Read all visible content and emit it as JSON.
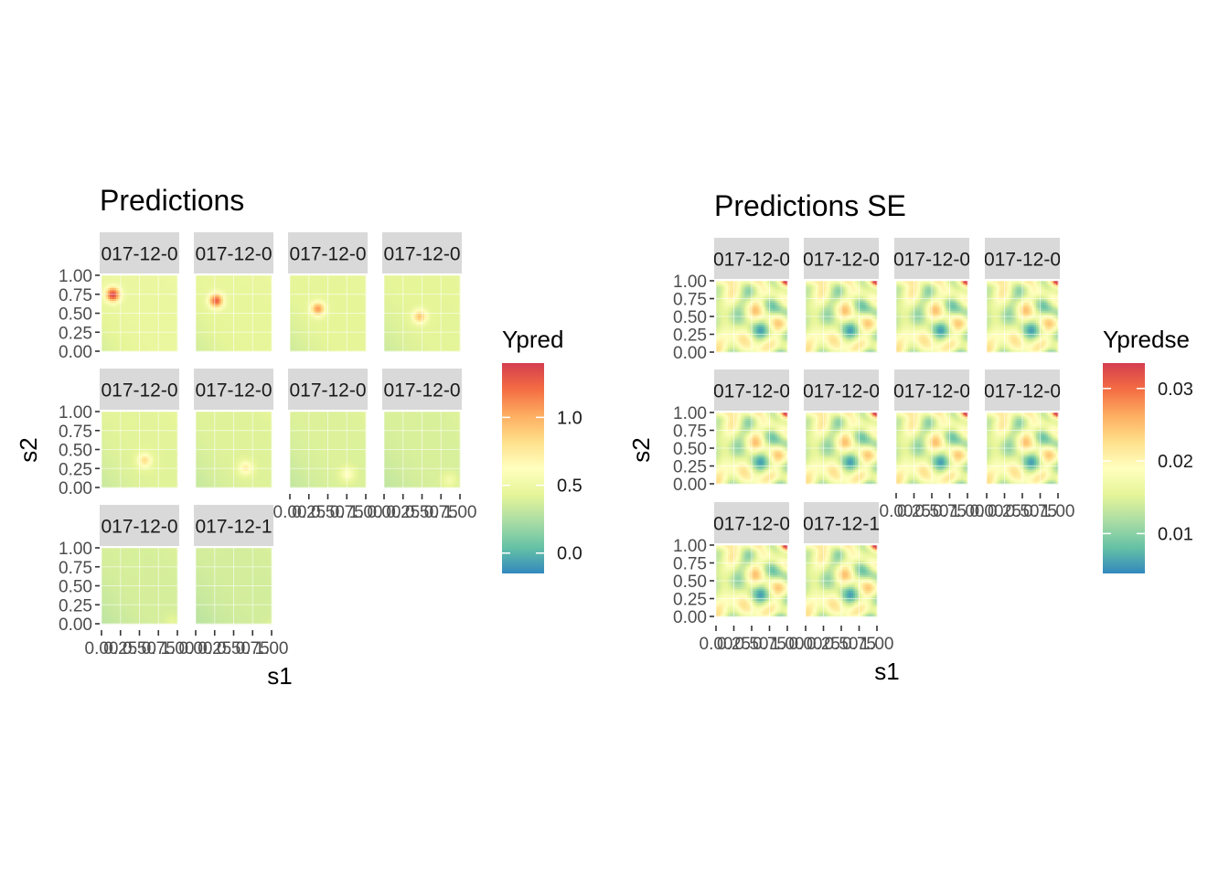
{
  "chart_data": [
    {
      "type": "heatmap",
      "title": "Predictions",
      "xlabel": "s1",
      "ylabel": "s2",
      "xlim": [
        0,
        1
      ],
      "ylim": [
        0,
        1
      ],
      "x_ticks": [
        "0.00",
        "0.25",
        "0.50",
        "0.75",
        "1.00"
      ],
      "y_ticks": [
        "0.00",
        "0.25",
        "0.50",
        "0.75",
        "1.00"
      ],
      "facet_labels": [
        "017-12-0",
        "017-12-0",
        "017-12-0",
        "017-12-0",
        "017-12-0",
        "017-12-0",
        "017-12-0",
        "017-12-0",
        "017-12-0",
        "017-12-1"
      ],
      "fill_variable": "Ypred",
      "colorbar": {
        "min": -0.15,
        "max": 1.4,
        "ticks": [
          0.0,
          0.5,
          1.0
        ],
        "tick_labels": [
          "0.0",
          "0.5",
          "1.0"
        ]
      },
      "palette": [
        "#3288bd",
        "#66c2a5",
        "#abdda4",
        "#e6f598",
        "#ffffbf",
        "#fee08b",
        "#fdae61",
        "#f46d43",
        "#d53e4f"
      ],
      "panels": [
        {
          "peak_x": 0.15,
          "peak_y": 0.75,
          "peak": 1.35,
          "base": 0.45
        },
        {
          "peak_x": 0.27,
          "peak_y": 0.67,
          "peak": 1.25,
          "base": 0.43
        },
        {
          "peak_x": 0.37,
          "peak_y": 0.56,
          "peak": 1.05,
          "base": 0.42
        },
        {
          "peak_x": 0.47,
          "peak_y": 0.46,
          "peak": 0.9,
          "base": 0.41
        },
        {
          "peak_x": 0.57,
          "peak_y": 0.36,
          "peak": 0.8,
          "base": 0.4
        },
        {
          "peak_x": 0.66,
          "peak_y": 0.26,
          "peak": 0.72,
          "base": 0.39
        },
        {
          "peak_x": 0.76,
          "peak_y": 0.18,
          "peak": 0.62,
          "base": 0.38
        },
        {
          "peak_x": 0.86,
          "peak_y": 0.1,
          "peak": 0.52,
          "base": 0.37
        },
        {
          "peak_x": 0.93,
          "peak_y": 0.04,
          "peak": 0.42,
          "base": 0.36
        },
        {
          "peak_x": 0.98,
          "peak_y": 0.0,
          "peak": 0.38,
          "base": 0.35
        }
      ]
    },
    {
      "type": "heatmap",
      "title": "Predictions SE",
      "xlabel": "s1",
      "ylabel": "s2",
      "xlim": [
        0,
        1
      ],
      "ylim": [
        0,
        1
      ],
      "x_ticks": [
        "0.00",
        "0.25",
        "0.50",
        "0.75",
        "1.00"
      ],
      "y_ticks": [
        "0.00",
        "0.25",
        "0.50",
        "0.75",
        "1.00"
      ],
      "facet_labels": [
        "017-12-0",
        "017-12-0",
        "017-12-0",
        "017-12-0",
        "017-12-0",
        "017-12-0",
        "017-12-0",
        "017-12-0",
        "017-12-0",
        "017-12-1"
      ],
      "fill_variable": "Ypredse",
      "colorbar": {
        "min": 0.0045,
        "max": 0.0335,
        "ticks": [
          0.01,
          0.02,
          0.03
        ],
        "tick_labels": [
          "0.01",
          "0.02",
          "0.03"
        ]
      },
      "palette": [
        "#3288bd",
        "#66c2a5",
        "#abdda4",
        "#e6f598",
        "#ffffbf",
        "#fee08b",
        "#fdae61",
        "#f46d43",
        "#d53e4f"
      ],
      "pattern": "identical mottled field in all ten panels; values between about 0.006 and 0.03, highest at the top-right corner"
    }
  ]
}
